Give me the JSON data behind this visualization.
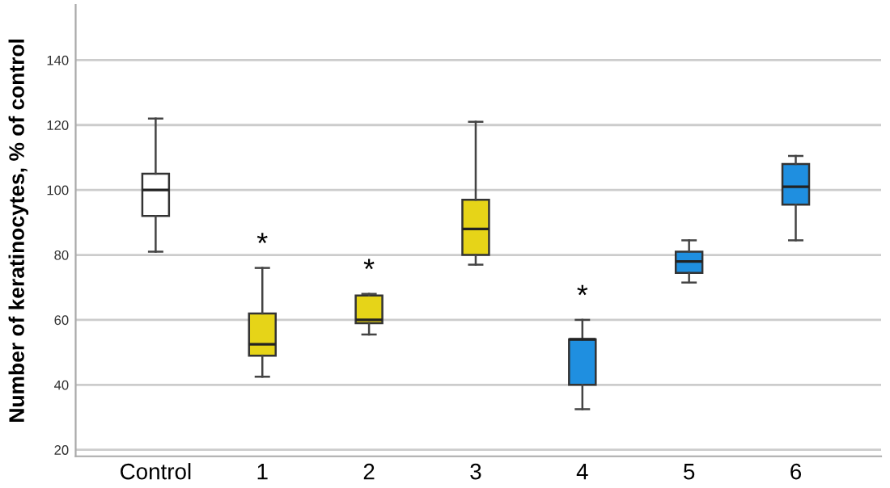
{
  "chart_data": {
    "type": "box",
    "ylabel": "Number of keratinocytes, % of control",
    "categories": [
      "Control",
      "1",
      "2",
      "3",
      "4",
      "5",
      "6"
    ],
    "boxes": [
      {
        "low": 81,
        "q1": 92,
        "median": 100,
        "q3": 105,
        "high": 122
      },
      {
        "low": 42.5,
        "q1": 49,
        "median": 52.5,
        "q3": 62,
        "high": 76
      },
      {
        "low": 55.5,
        "q1": 59,
        "median": 60,
        "q3": 67.5,
        "high": 68
      },
      {
        "low": 77,
        "q1": 80,
        "median": 88,
        "q3": 97,
        "high": 121
      },
      {
        "low": 32.5,
        "q1": 40,
        "median": 54,
        "q3": 54,
        "high": 60
      },
      {
        "low": 71.5,
        "q1": 74.5,
        "median": 78,
        "q3": 81,
        "high": 84.5
      },
      {
        "low": 84.5,
        "q1": 95.5,
        "median": 101,
        "q3": 108,
        "high": 110.5
      }
    ],
    "colors": [
      "#ffffff",
      "#e6d418",
      "#e6d418",
      "#e6d418",
      "#1f8fe0",
      "#1f8fe0",
      "#1f8fe0"
    ],
    "ylim": [
      18,
      157
    ],
    "yticks": [
      20,
      40,
      60,
      80,
      100,
      120,
      140
    ],
    "grid": "y",
    "annotations": [
      {
        "text": "*",
        "x": "1",
        "y": 76
      },
      {
        "text": "*",
        "x": "2",
        "y": 68
      },
      {
        "text": "*",
        "x": "4",
        "y": 60
      }
    ]
  }
}
